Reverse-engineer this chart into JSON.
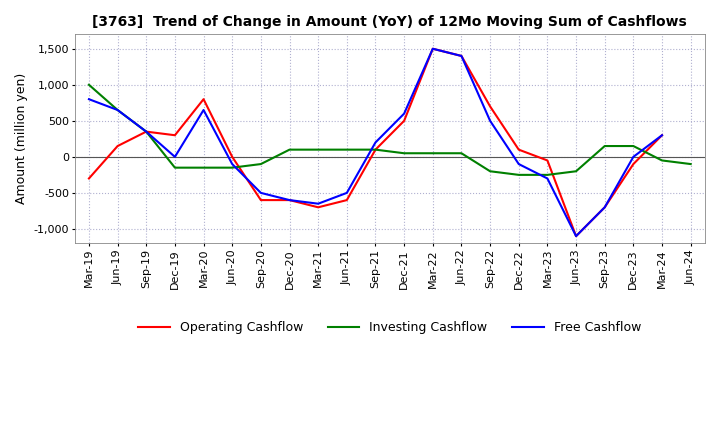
{
  "title": "[3763]  Trend of Change in Amount (YoY) of 12Mo Moving Sum of Cashflows",
  "ylabel": "Amount (million yen)",
  "x_labels": [
    "Mar-19",
    "Jun-19",
    "Sep-19",
    "Dec-19",
    "Mar-20",
    "Jun-20",
    "Sep-20",
    "Dec-20",
    "Mar-21",
    "Jun-21",
    "Sep-21",
    "Dec-21",
    "Mar-22",
    "Jun-22",
    "Sep-22",
    "Dec-22",
    "Mar-23",
    "Jun-23",
    "Sep-23",
    "Dec-23",
    "Mar-24",
    "Jun-24"
  ],
  "operating": [
    -300,
    150,
    350,
    300,
    800,
    0,
    -600,
    -600,
    -700,
    -600,
    100,
    500,
    1500,
    1400,
    700,
    100,
    -50,
    -1100,
    -700,
    -100,
    300,
    null
  ],
  "investing": [
    1000,
    650,
    350,
    -150,
    -150,
    -150,
    -100,
    100,
    100,
    100,
    100,
    50,
    50,
    50,
    -200,
    -250,
    -250,
    -200,
    150,
    150,
    -50,
    -100
  ],
  "free": [
    800,
    650,
    350,
    0,
    650,
    -100,
    -500,
    -600,
    -650,
    -500,
    200,
    600,
    1500,
    1400,
    500,
    -100,
    -300,
    -1100,
    -700,
    0,
    300,
    null
  ],
  "ylim": [
    -1200,
    1700
  ],
  "yticks": [
    -1000,
    -500,
    0,
    500,
    1000,
    1500
  ],
  "operating_color": "#ff0000",
  "investing_color": "#008000",
  "free_color": "#0000ff",
  "background_color": "#ffffff",
  "grid_color": "#b0b0d0",
  "title_fontsize": 10,
  "axis_fontsize": 8,
  "ylabel_fontsize": 9,
  "legend_fontsize": 9,
  "linewidth": 1.5
}
